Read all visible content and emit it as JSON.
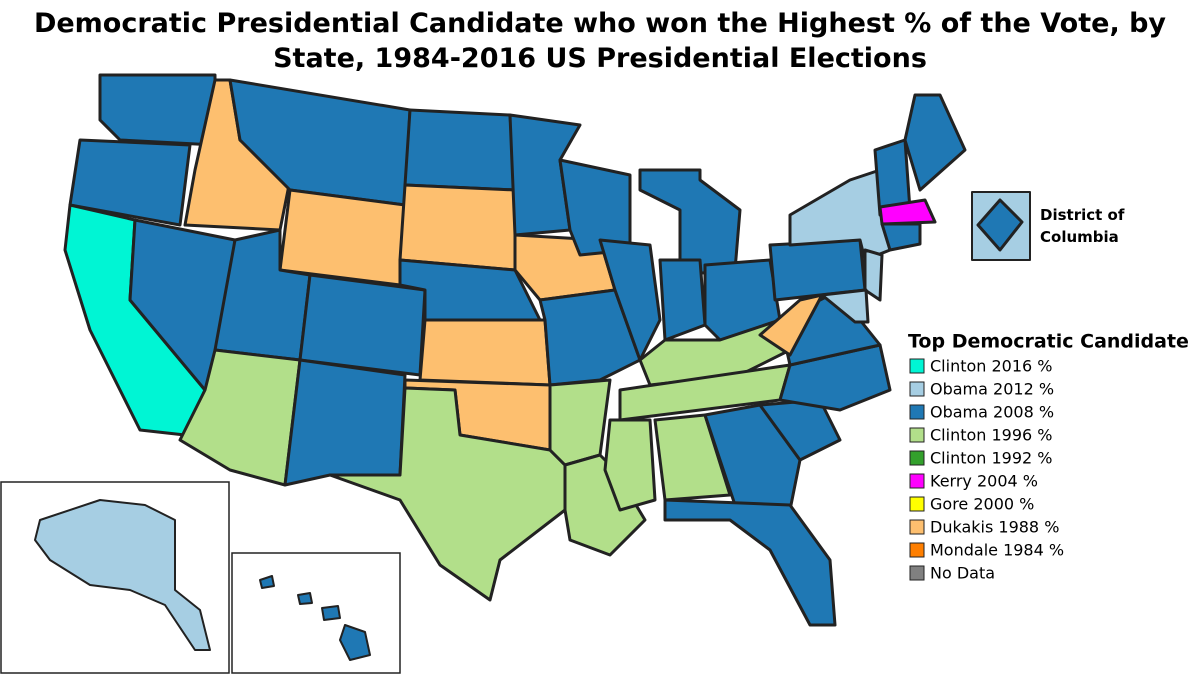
{
  "title": "Democratic Presidential Candidate who won the Highest % of the Vote, by State, 1984-2016 US Presidential Elections",
  "inset_label": [
    "District of",
    "Columbia"
  ],
  "legend": {
    "title": "Top Democratic Candidate",
    "items": [
      {
        "label": "Clinton 2016 %",
        "color": "#00f5d4"
      },
      {
        "label": "Obama 2012 %",
        "color": "#a6cee3"
      },
      {
        "label": "Obama 2008 %",
        "color": "#1f78b4"
      },
      {
        "label": "Clinton 1996 %",
        "color": "#b2df8a"
      },
      {
        "label": "Clinton 1992 %",
        "color": "#33a02c"
      },
      {
        "label": "Kerry 2004 %",
        "color": "#ff00ff"
      },
      {
        "label": "Gore 2000 %",
        "color": "#ffff00"
      },
      {
        "label": "Dukakis 1988 %",
        "color": "#fdbf6f"
      },
      {
        "label": "Mondale 1984 %",
        "color": "#ff7f00"
      },
      {
        "label": "No Data",
        "color": "#808080"
      }
    ]
  }
}
